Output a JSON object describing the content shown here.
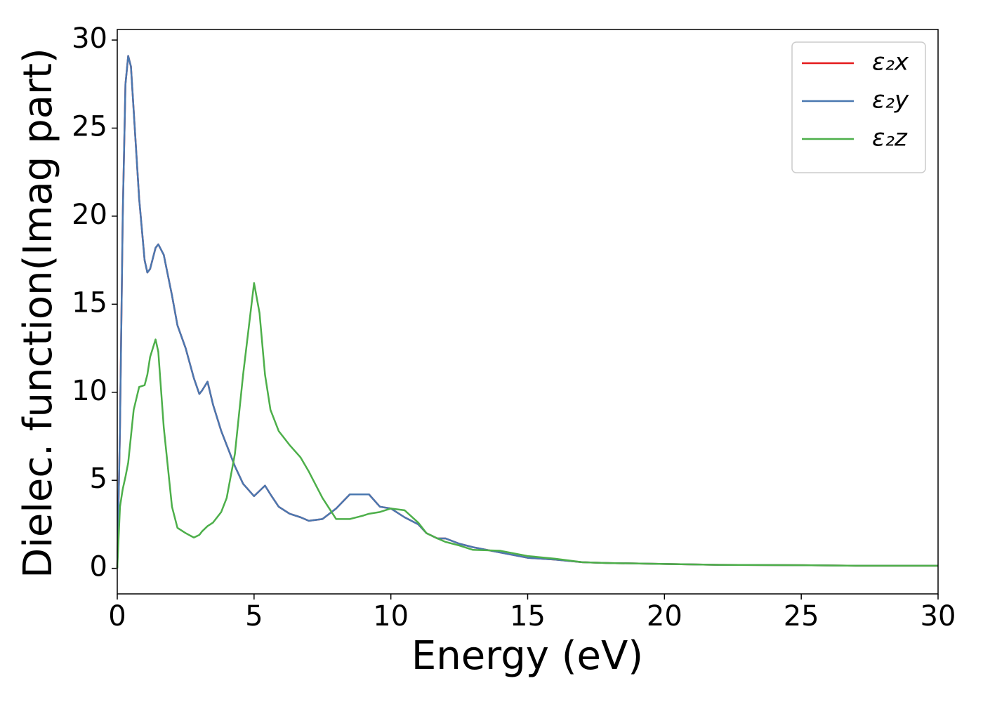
{
  "chart_data": {
    "type": "line",
    "xlabel": "Energy (eV)",
    "ylabel": "Dielec. function(Imag part)",
    "x": [
      0,
      0.1,
      0.2,
      0.3,
      0.4,
      0.5,
      0.6,
      0.8,
      1.0,
      1.1,
      1.2,
      1.4,
      1.5,
      1.7,
      2.0,
      2.2,
      2.5,
      2.8,
      3.0,
      3.1,
      3.3,
      3.5,
      3.8,
      4.0,
      4.3,
      4.6,
      5.0,
      5.2,
      5.4,
      5.6,
      5.9,
      6.3,
      6.7,
      7.0,
      7.5,
      8.0,
      8.5,
      9.0,
      9.2,
      9.6,
      10,
      10.5,
      11,
      11.3,
      11.7,
      12,
      12.5,
      13,
      14,
      15,
      16,
      17,
      18,
      20,
      22,
      25,
      27,
      30
    ],
    "series": [
      {
        "name": "ε₂x",
        "color": "#e41a1c",
        "values": [
          0,
          8,
          20,
          27.5,
          29.1,
          28.5,
          26,
          21,
          17.5,
          16.8,
          17,
          18.2,
          18.4,
          17.8,
          15.5,
          13.8,
          12.5,
          10.8,
          9.9,
          10.1,
          10.6,
          9.3,
          7.8,
          7.0,
          5.8,
          4.8,
          4.1,
          4.4,
          4.7,
          4.2,
          3.5,
          3.1,
          2.9,
          2.7,
          2.8,
          3.4,
          4.2,
          4.2,
          4.2,
          3.5,
          3.4,
          2.9,
          2.5,
          2.0,
          1.7,
          1.7,
          1.4,
          1.2,
          0.9,
          0.6,
          0.5,
          0.35,
          0.3,
          0.25,
          0.2,
          0.18,
          0.15,
          0.15
        ]
      },
      {
        "name": "ε₂y",
        "color": "#4a78b0",
        "values": [
          0,
          8,
          20,
          27.5,
          29.1,
          28.5,
          26,
          21,
          17.5,
          16.8,
          17,
          18.2,
          18.4,
          17.8,
          15.5,
          13.8,
          12.5,
          10.8,
          9.9,
          10.1,
          10.6,
          9.3,
          7.8,
          7.0,
          5.8,
          4.8,
          4.1,
          4.4,
          4.7,
          4.2,
          3.5,
          3.1,
          2.9,
          2.7,
          2.8,
          3.4,
          4.2,
          4.2,
          4.2,
          3.5,
          3.4,
          2.9,
          2.5,
          2.0,
          1.7,
          1.7,
          1.4,
          1.2,
          0.9,
          0.6,
          0.5,
          0.35,
          0.3,
          0.25,
          0.2,
          0.18,
          0.15,
          0.15
        ]
      },
      {
        "name": "ε₂z",
        "color": "#4daf4a",
        "values": [
          0,
          3.5,
          4.5,
          5.2,
          6,
          7.5,
          9,
          10.3,
          10.4,
          11,
          12,
          13,
          12.3,
          8,
          3.5,
          2.3,
          2.0,
          1.75,
          1.9,
          2.1,
          2.4,
          2.6,
          3.2,
          4.0,
          6.5,
          11,
          16.2,
          14.5,
          11,
          9,
          7.8,
          7.0,
          6.3,
          5.5,
          4.0,
          2.8,
          2.8,
          3.0,
          3.1,
          3.2,
          3.4,
          3.3,
          2.6,
          2.0,
          1.7,
          1.5,
          1.3,
          1.05,
          1.0,
          0.7,
          0.55,
          0.35,
          0.3,
          0.25,
          0.2,
          0.18,
          0.15,
          0.15
        ]
      }
    ],
    "xlim": [
      0,
      30
    ],
    "xticks": [
      0,
      5,
      10,
      15,
      20,
      25,
      30
    ],
    "ylim": [
      -1.45,
      30.6
    ],
    "yticks": [
      0,
      5,
      10,
      15,
      20,
      25,
      30
    ],
    "legend": "upper right"
  }
}
